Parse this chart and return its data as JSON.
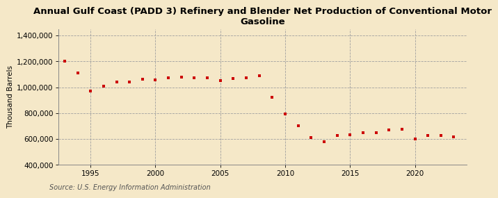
{
  "title": "Annual Gulf Coast (PADD 3) Refinery and Blender Net Production of Conventional Motor\nGasoline",
  "ylabel": "Thousand Barrels",
  "source": "Source: U.S. Energy Information Administration",
  "background_color": "#f5e8c8",
  "plot_background_color": "#f5e8c8",
  "marker_color": "#cc0000",
  "marker": "s",
  "marker_size": 3.5,
  "years": [
    1993,
    1994,
    1995,
    1996,
    1997,
    1998,
    1999,
    2000,
    2001,
    2002,
    2003,
    2004,
    2005,
    2006,
    2007,
    2008,
    2009,
    2010,
    2011,
    2012,
    2013,
    2014,
    2015,
    2016,
    2017,
    2018,
    2019,
    2020,
    2021,
    2022,
    2023
  ],
  "values": [
    1200000,
    1110000,
    970000,
    1010000,
    1040000,
    1040000,
    1060000,
    1055000,
    1070000,
    1080000,
    1075000,
    1075000,
    1050000,
    1065000,
    1075000,
    1090000,
    925000,
    795000,
    700000,
    610000,
    580000,
    625000,
    635000,
    650000,
    650000,
    670000,
    675000,
    600000,
    625000,
    625000,
    615000
  ],
  "ylim": [
    400000,
    1450000
  ],
  "yticks": [
    400000,
    600000,
    800000,
    1000000,
    1200000,
    1400000
  ],
  "ytick_labels": [
    "400,000",
    "600,000",
    "800,000",
    "1,000,000",
    "1,200,000",
    "1,400,000"
  ],
  "xlim": [
    1992.5,
    2024
  ],
  "xticks": [
    1995,
    2000,
    2005,
    2010,
    2015,
    2020
  ],
  "grid_color": "#a0a0a0",
  "grid_style": "--",
  "title_fontsize": 9.5,
  "axis_fontsize": 7.5,
  "ylabel_fontsize": 7.5,
  "source_fontsize": 7.0
}
